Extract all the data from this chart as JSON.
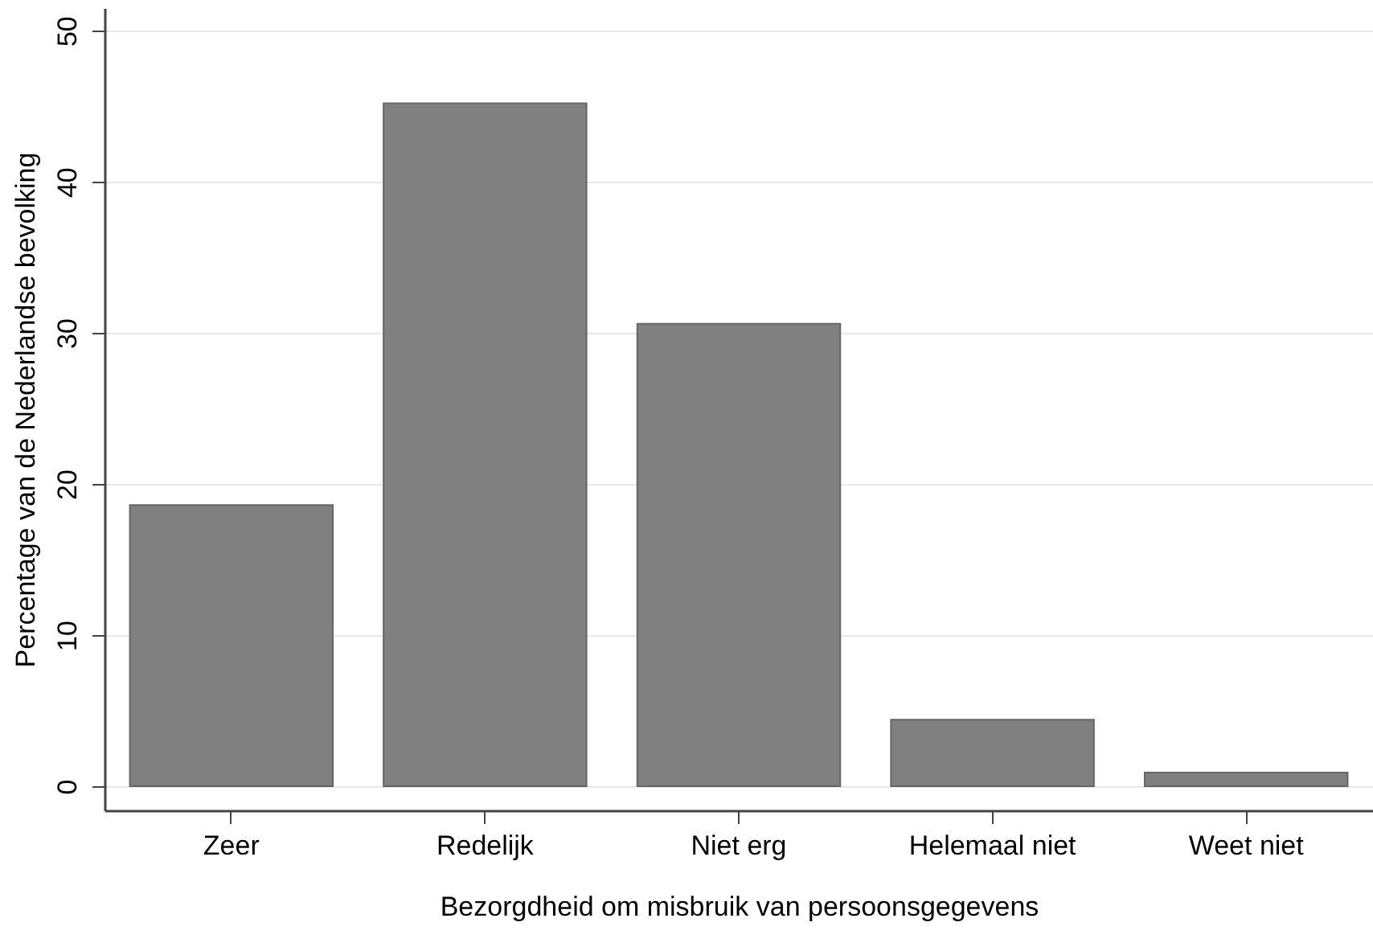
{
  "chart_data": {
    "type": "bar",
    "xlabel": "Bezorgdheid om misbruik van persoonsgegevens",
    "ylabel": "Percentage van de Nederlandse bevolking",
    "categories": [
      "Zeer",
      "Redelijk",
      "Niet erg",
      "Helemaal niet",
      "Weet niet"
    ],
    "values": [
      18.6,
      45.2,
      30.6,
      4.4,
      0.9
    ],
    "color": "#808080",
    "ylim": [
      -1.6,
      51.5
    ],
    "yticks": [
      0,
      10,
      20,
      30,
      40,
      50
    ],
    "grid": "y"
  }
}
